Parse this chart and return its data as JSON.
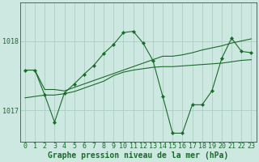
{
  "background_color": "#cce8e0",
  "grid_color": "#a8c8bc",
  "line_color": "#1a6b2a",
  "xlabel": "Graphe pression niveau de la mer (hPa)",
  "xlabel_fontsize": 7.0,
  "tick_fontsize": 6.0,
  "ytick_labels": [
    "1017",
    "1018"
  ],
  "ytick_values": [
    1017.0,
    1018.0
  ],
  "ylim": [
    1016.55,
    1018.55
  ],
  "xlim": [
    -0.5,
    23.5
  ],
  "xtick_values": [
    0,
    1,
    2,
    3,
    4,
    5,
    6,
    7,
    8,
    9,
    10,
    11,
    12,
    13,
    14,
    15,
    16,
    17,
    18,
    19,
    20,
    21,
    22,
    23
  ],
  "line1_x": [
    0,
    1,
    2,
    3,
    4,
    5,
    6,
    7,
    8,
    9,
    10,
    11,
    12,
    13,
    14,
    15,
    16,
    17,
    18,
    19,
    20,
    21,
    22,
    23
  ],
  "line1_y": [
    1017.58,
    1017.58,
    1017.3,
    1017.3,
    1017.28,
    1017.33,
    1017.38,
    1017.43,
    1017.48,
    1017.53,
    1017.58,
    1017.63,
    1017.68,
    1017.73,
    1017.78,
    1017.78,
    1017.8,
    1017.83,
    1017.87,
    1017.9,
    1017.93,
    1017.97,
    1018.0,
    1018.03
  ],
  "line2_x": [
    0,
    1,
    2,
    3,
    4,
    5,
    6,
    7,
    8,
    9,
    10,
    11,
    12,
    13,
    14,
    15,
    16,
    17,
    18,
    19,
    20,
    21,
    22,
    23
  ],
  "line2_y": [
    1017.18,
    1017.2,
    1017.22,
    1017.22,
    1017.24,
    1017.27,
    1017.32,
    1017.37,
    1017.42,
    1017.5,
    1017.55,
    1017.58,
    1017.6,
    1017.62,
    1017.63,
    1017.63,
    1017.64,
    1017.65,
    1017.66,
    1017.67,
    1017.68,
    1017.7,
    1017.72,
    1017.73
  ],
  "line3_x": [
    0,
    1,
    2,
    3,
    4,
    5,
    6,
    7,
    8,
    9,
    10,
    11,
    12,
    13,
    14,
    15,
    16,
    17,
    18,
    19,
    20,
    21,
    22,
    23
  ],
  "line3_y": [
    1017.58,
    1017.58,
    1017.22,
    1016.83,
    1017.25,
    1017.38,
    1017.52,
    1017.65,
    1017.82,
    1017.95,
    1018.12,
    1018.14,
    1017.97,
    1017.72,
    1017.2,
    1016.67,
    1016.67,
    1017.08,
    1017.08,
    1017.28,
    1017.75,
    1018.04,
    1017.85,
    1017.83
  ]
}
